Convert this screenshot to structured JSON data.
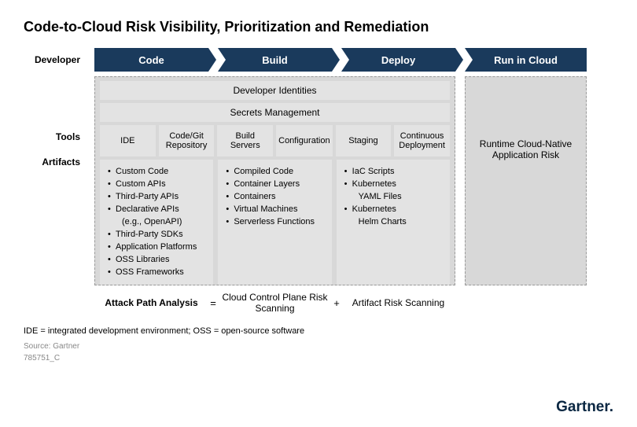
{
  "title": "Code-to-Cloud Risk Visibility, Prioritization and Remediation",
  "colors": {
    "stage_bg": "#1a3a5c",
    "stage_fg": "#ffffff",
    "panel_bg": "#d8d8d8",
    "box_bg": "#e3e3e3",
    "dash_border": "#999999",
    "text": "#000000",
    "muted": "#888888"
  },
  "row_labels": {
    "developer": "Developer",
    "tools": "Tools",
    "artifacts": "Artifacts"
  },
  "stages": [
    "Code",
    "Build",
    "Deploy",
    "Run in Cloud"
  ],
  "bands": {
    "identities": "Developer Identities",
    "secrets": "Secrets Management"
  },
  "tools": [
    "IDE",
    "Code/Git Repository",
    "Build Servers",
    "Configuration",
    "Staging",
    "Continuous Deployment"
  ],
  "artifacts": {
    "code": [
      "Custom Code",
      "Custom APIs",
      "Third-Party APIs",
      "Declarative APIs",
      "(e.g., OpenAPI)",
      "Third-Party SDKs",
      "Application Platforms",
      "OSS Libraries",
      "OSS Frameworks"
    ],
    "code_indent_idx": [
      4
    ],
    "build": [
      "Compiled Code",
      "Container Layers",
      "Containers",
      "Virtual Machines",
      "Serverless Functions"
    ],
    "deploy": [
      "IaC Scripts",
      "Kubernetes",
      "YAML Files",
      "Kubernetes",
      "Helm Charts"
    ],
    "deploy_indent_idx": [
      2,
      4
    ]
  },
  "run_box": "Runtime Cloud-Native Application Risk",
  "attack": {
    "label": "Attack Path Analysis",
    "left": "Cloud Control Plane Risk Scanning",
    "right": "Artifact Risk Scanning",
    "eq": "=",
    "plus": "+"
  },
  "footer": {
    "glossary": "IDE = integrated development environment; OSS = open-source software",
    "source": "Source: Gartner",
    "docid": "785751_C"
  },
  "logo": "Gartner"
}
